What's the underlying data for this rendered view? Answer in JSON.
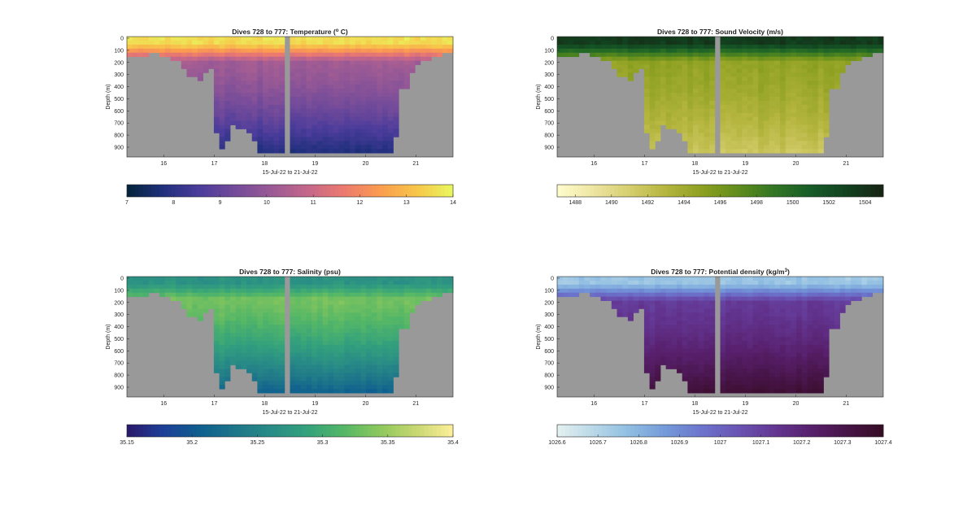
{
  "colors": {
    "background": "#ffffff",
    "mask": "#999999",
    "axis": "#262626"
  },
  "chart_data": [
    {
      "type": "heatmap",
      "title": "Dives 728 to 777: Temperature (",
      "title_sup": "o",
      "title_suffix": " C)",
      "xlabel": "15-Jul-22 to 21-Jul-22",
      "ylabel": "Depth (m)",
      "xticks": [
        "16",
        "17",
        "18",
        "19",
        "20",
        "21"
      ],
      "yticks": [
        "0",
        "100",
        "200",
        "300",
        "400",
        "500",
        "600",
        "700",
        "800",
        "900"
      ],
      "colorbar_ticks": [
        "7",
        "8",
        "9",
        "10",
        "11",
        "12",
        "13",
        "14"
      ],
      "colorbar_range": [
        7,
        14
      ],
      "colormap": "thermal",
      "field": {
        "surface": 13.6,
        "mid": 10.4,
        "deep": 7.6
      }
    },
    {
      "type": "heatmap",
      "title": "Dives 728 to 777: Sound Velocity (m/s)",
      "title_sup": "",
      "title_suffix": "",
      "xlabel": "15-Jul-22 to 21-Jul-22",
      "ylabel": "Depth (m)",
      "xticks": [
        "16",
        "17",
        "18",
        "19",
        "20",
        "21"
      ],
      "yticks": [
        "0",
        "100",
        "200",
        "300",
        "400",
        "500",
        "600",
        "700",
        "800",
        "900"
      ],
      "colorbar_ticks": [
        "1488",
        "1490",
        "1492",
        "1494",
        "1496",
        "1498",
        "1500",
        "1502",
        "1504"
      ],
      "colorbar_range": [
        1487,
        1505
      ],
      "colormap": "speed",
      "field": {
        "surface": 1503.5,
        "mid": 1495.0,
        "deep": 1491.5
      }
    },
    {
      "type": "heatmap",
      "title": "Dives 728 to 777: Salinity (psu)",
      "title_sup": "",
      "title_suffix": "",
      "xlabel": "15-Jul-22 to 21-Jul-22",
      "ylabel": "Depth (m)",
      "xticks": [
        "16",
        "17",
        "18",
        "19",
        "20",
        "21"
      ],
      "yticks": [
        "0",
        "100",
        "200",
        "300",
        "400",
        "500",
        "600",
        "700",
        "800",
        "900"
      ],
      "colorbar_ticks": [
        "35.15",
        "35.2",
        "35.25",
        "35.3",
        "35.35",
        "35.4"
      ],
      "colorbar_range": [
        35.15,
        35.4
      ],
      "colormap": "haline",
      "field": {
        "surface": 35.27,
        "mid": 35.34,
        "deep": 35.2
      }
    },
    {
      "type": "heatmap",
      "title": "Dives 728 to 777: Potential density (kg/m",
      "title_sup": "3",
      "title_suffix": ")",
      "xlabel": "15-Jul-22 to 21-Jul-22",
      "ylabel": "Depth (m)",
      "xticks": [
        "16",
        "17",
        "18",
        "19",
        "20",
        "21"
      ],
      "yticks": [
        "0",
        "100",
        "200",
        "300",
        "400",
        "500",
        "600",
        "700",
        "800",
        "900"
      ],
      "colorbar_ticks": [
        "1026.6",
        "1026.7",
        "1026.8",
        "1026.9",
        "1027",
        "1027.1",
        "1027.2",
        "1027.3",
        "1027.4"
      ],
      "colorbar_range": [
        1026.6,
        1027.4
      ],
      "colormap": "dense",
      "field": {
        "surface": 1026.75,
        "mid": 1027.1,
        "deep": 1027.37
      }
    }
  ]
}
